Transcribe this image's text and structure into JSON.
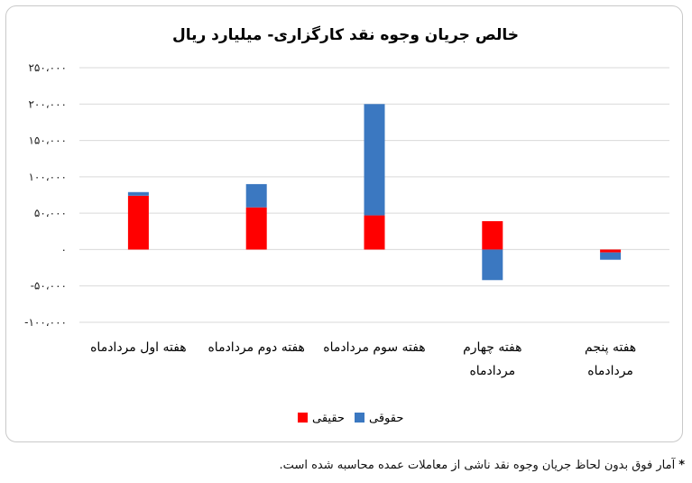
{
  "chart_data": {
    "type": "bar",
    "stacked": true,
    "title": "خالص جریان وجوه نقد کارگزاری- میلیارد ریال",
    "categories": [
      "هفته اول مردادماه",
      "هفته دوم مردادماه",
      "هفته سوم مردادماه",
      "هفته چهارم مردادماه",
      "هفته پنجم مردادماه"
    ],
    "series": [
      {
        "name": "حقیقی",
        "color": "#ff0000",
        "values": [
          74000,
          58000,
          47000,
          39000,
          -4000
        ]
      },
      {
        "name": "حقوقی",
        "color": "#3b78c1",
        "values": [
          5000,
          32000,
          153000,
          -42000,
          -10000
        ]
      }
    ],
    "ylim": [
      -100000,
      250000
    ],
    "yticks": [
      250000,
      200000,
      150000,
      100000,
      50000,
      0,
      -50000,
      -100000
    ],
    "ytick_labels": [
      "۲۵۰،۰۰۰",
      "۲۰۰،۰۰۰",
      "۱۵۰،۰۰۰",
      "۱۰۰،۰۰۰",
      "۵۰،۰۰۰",
      "۰",
      "-۵۰،۰۰۰",
      "-۱۰۰،۰۰۰"
    ],
    "grid": true,
    "legend_position": "bottom"
  },
  "footnote": {
    "star": "*",
    "text": "آمار فوق بدون لحاظ جریان وجوه نقد ناشی از معاملات عمده محاسبه شده است."
  }
}
